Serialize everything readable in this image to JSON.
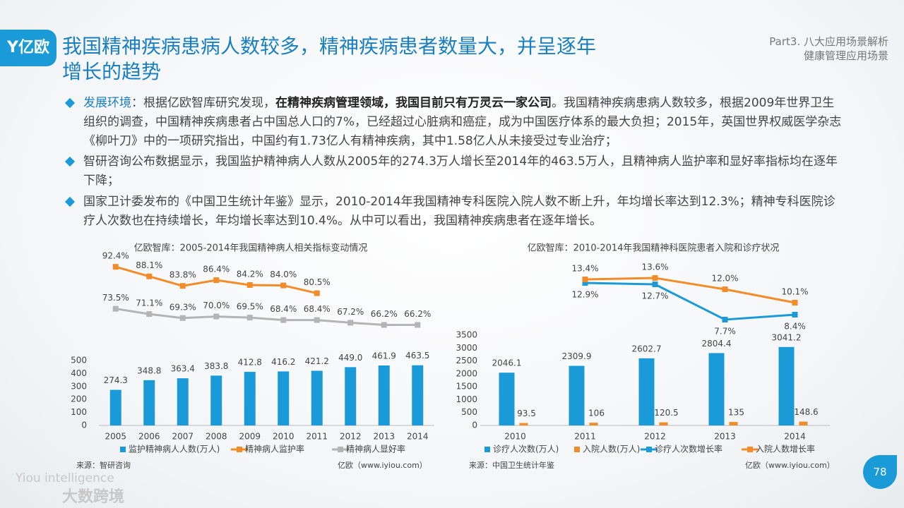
{
  "header": {
    "logo": "亿欧",
    "title_lines": [
      "我国精神疾病患病人数较多，精神疾病患者数量大，并呈逐年",
      "增长的趋势"
    ],
    "part": "Part3. 八大应用场景解析",
    "section": "健康管理应用场景"
  },
  "bullets": [
    [
      "发展环境",
      "：根据亿欧智库研究发现，",
      "在精神疾病管理领域，我国目前只有万灵云一家公司",
      "。我国精神疾病患病人数较多，根据2009年世界卫生组织的调查，中国精神疾病患者占中国总人口的7%，已经超过心脏病和癌症，成为中国医疗体系的最大负担；2015年，英国世界权威医学杂志《柳叶刀》中的一项研究指出，中国约有1.73亿人有精神疾病，其中1.58亿人从未接受过专业治疗；"
    ],
    [
      "智研咨询公布数据显示，我国监护精神病人人数从2005年的274.3万人增长至2014年的463.5万人，且精神病人监护率和显好率指标均在逐年下降；"
    ],
    [
      "国家卫计委发布的《中国卫生统计年鉴》显示，2010-2014年我国精神专科医院入院人数不断上升，年均增长率达到12.3%；精神专科医院诊疗人次数也在持续增长，年均增长率达到10.4%。从中可以看出，我国精神疾病患者在逐年增长。"
    ]
  ],
  "chart_data": [
    {
      "type": "bar",
      "title": "亿欧智库：2005-2014年我国精神病人相关指标变动情况",
      "categories": [
        "2005",
        "2006",
        "2007",
        "2008",
        "2009",
        "2010",
        "2011",
        "2012",
        "2013",
        "2014"
      ],
      "ylim": [
        0,
        500
      ],
      "yticks": [
        0,
        100,
        200,
        300,
        400,
        500
      ],
      "y2lim": [
        60,
        95
      ],
      "series": [
        {
          "name": "监护精神病人人数(万人)",
          "type": "bar",
          "color": "#1a9bd7",
          "values": [
            274.3,
            348.8,
            363.4,
            383.8,
            412.8,
            416.2,
            421.2,
            449.0,
            461.9,
            463.5
          ],
          "value_labels": [
            "274.3",
            "348.8",
            "363.4",
            "383.8",
            "412.8",
            "416.2",
            "421.2",
            "449.0",
            "461.9",
            "463.5"
          ]
        },
        {
          "name": "精神病人监护率",
          "type": "line",
          "axis": "y2",
          "color": "#f28c28",
          "values": [
            92.4,
            88.1,
            83.8,
            86.4,
            84.2,
            84.0,
            80.5,
            null,
            null,
            null
          ],
          "value_labels": [
            "92.4%",
            "88.1%",
            "83.8%",
            "86.4%",
            "84.2%",
            "84.0%",
            "80.5%",
            null,
            null,
            null
          ]
        },
        {
          "name": "精神病人显好率",
          "type": "line",
          "axis": "y2",
          "color": "#b4b4b4",
          "values": [
            73.5,
            71.1,
            69.3,
            70.0,
            69.5,
            68.4,
            68.4,
            67.2,
            66.2,
            66.2
          ],
          "value_labels": [
            "73.5%",
            "71.1%",
            "69.3%",
            "70.0%",
            "69.5%",
            "68.4%",
            "68.4%",
            "67.2%",
            "66.2%",
            "66.2%"
          ]
        }
      ],
      "source": "来源：智研咨询",
      "site": "亿欧（www.iyiou.com）"
    },
    {
      "type": "bar",
      "title": "亿欧智库：2010-2014年我国精神科医院患者入院和诊疗状况",
      "categories": [
        "2010",
        "2011",
        "2012",
        "2013",
        "2014"
      ],
      "ylim": [
        0,
        3500
      ],
      "yticks": [
        0,
        500,
        1000,
        1500,
        2000,
        2500,
        3000,
        3500
      ],
      "y2lim": [
        6,
        15
      ],
      "series": [
        {
          "name": "诊疗人次数(万人)",
          "type": "bar",
          "color": "#1a9bd7",
          "values": [
            2046.1,
            2309.9,
            2602.7,
            2804.4,
            3041.2
          ]
        },
        {
          "name": "入院人数(万人)",
          "type": "bar",
          "color": "#f28c28",
          "values": [
            93.5,
            106,
            120.5,
            135,
            148.6
          ]
        },
        {
          "name": "诊疗人次数增长率",
          "type": "line",
          "axis": "y2",
          "color": "#1a9bd7",
          "values": [
            null,
            12.9,
            12.7,
            7.7,
            8.4
          ],
          "value_labels": [
            null,
            "12.9%",
            "12.7%",
            "7.7%",
            "8.4%"
          ]
        },
        {
          "name": "入院人数增长率",
          "type": "line",
          "axis": "y2",
          "color": "#f28c28",
          "values": [
            null,
            13.4,
            13.6,
            12.0,
            10.1
          ],
          "value_labels": [
            null,
            "13.4%",
            "13.6%",
            "12.0%",
            "10.1%"
          ]
        }
      ],
      "source": "来源：中国卫生统计年鉴",
      "site": "亿欧（www.iyiou.com）"
    }
  ],
  "page": 78,
  "watermark": {
    "en": "Yiou intelligence",
    "cn": "大数跨境"
  }
}
